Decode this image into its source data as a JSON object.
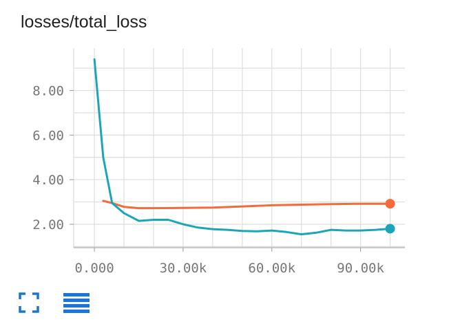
{
  "card": {
    "title": "losses/total_loss"
  },
  "toolbar": {
    "expand_icon": "fullscreen-icon",
    "data_icon": "menu-lines-icon"
  },
  "colors": {
    "series_orange": "#f5693a",
    "series_teal": "#1aa6b7",
    "grid": "#dddddd",
    "toolbar": "#1976d2"
  },
  "chart_data": {
    "type": "line",
    "title": "losses/total_loss",
    "xlabel": "",
    "ylabel": "",
    "xlim": [
      -7000,
      105000
    ],
    "ylim": [
      0.95,
      9.9
    ],
    "xticks": [
      0,
      30000,
      60000,
      90000
    ],
    "xtick_labels": [
      "0.000",
      "30.00k",
      "60.00k",
      "90.00k"
    ],
    "yticks": [
      2,
      4,
      6,
      8
    ],
    "ytick_labels": [
      "2.00",
      "4.00",
      "6.00",
      "8.00"
    ],
    "grid": true,
    "legend": "none",
    "series": [
      {
        "color": "#f5693a",
        "x": [
          3000,
          6000,
          10000,
          15000,
          20000,
          30000,
          40000,
          50000,
          60000,
          70000,
          80000,
          90000,
          100000
        ],
        "y": [
          3.05,
          2.95,
          2.78,
          2.72,
          2.72,
          2.73,
          2.75,
          2.8,
          2.85,
          2.88,
          2.9,
          2.92,
          2.92
        ],
        "end_marker": true
      },
      {
        "color": "#1aa6b7",
        "x": [
          0,
          3000,
          6000,
          10000,
          15000,
          20000,
          25000,
          30000,
          35000,
          40000,
          45000,
          50000,
          55000,
          60000,
          65000,
          70000,
          75000,
          80000,
          85000,
          90000,
          95000,
          100000
        ],
        "y": [
          9.4,
          5.0,
          2.95,
          2.5,
          2.15,
          2.2,
          2.2,
          2.0,
          1.85,
          1.78,
          1.75,
          1.7,
          1.68,
          1.72,
          1.65,
          1.55,
          1.62,
          1.75,
          1.72,
          1.72,
          1.75,
          1.8
        ],
        "end_marker": true
      }
    ]
  }
}
